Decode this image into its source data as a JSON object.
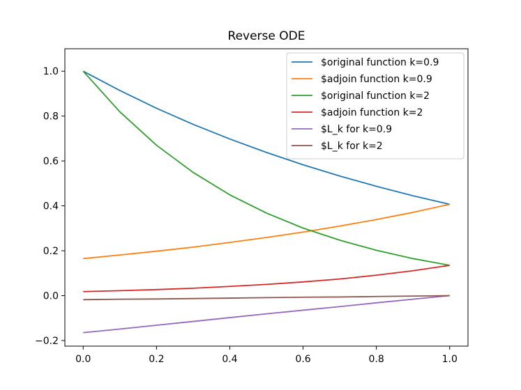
{
  "chart_data": {
    "type": "line",
    "title": "Reverse ODE",
    "xlabel": "",
    "ylabel": "",
    "xlim": [
      -0.05,
      1.05
    ],
    "ylim": [
      -0.225,
      1.1
    ],
    "xticks": [
      0.0,
      0.2,
      0.4,
      0.6,
      0.8,
      1.0
    ],
    "xtick_labels": [
      "0.0",
      "0.2",
      "0.4",
      "0.6",
      "0.8",
      "1.0"
    ],
    "yticks": [
      -0.2,
      0.0,
      0.2,
      0.4,
      0.6,
      0.8,
      1.0
    ],
    "ytick_labels": [
      "−0.2",
      "0.0",
      "0.2",
      "0.4",
      "0.6",
      "0.8",
      "1.0"
    ],
    "grid": false,
    "legend_position": "top-right",
    "x": [
      0.0,
      0.1,
      0.2,
      0.3,
      0.4,
      0.5,
      0.6,
      0.7,
      0.8,
      0.9,
      1.0
    ],
    "series": [
      {
        "name": "$original function k=0.9",
        "color": "#1f77b4",
        "values": [
          1.0,
          0.914,
          0.835,
          0.763,
          0.698,
          0.638,
          0.583,
          0.533,
          0.487,
          0.445,
          0.407
        ]
      },
      {
        "name": "$adjoin function k=0.9",
        "color": "#ff7f0e",
        "values": [
          0.165,
          0.181,
          0.198,
          0.216,
          0.237,
          0.259,
          0.283,
          0.31,
          0.339,
          0.371,
          0.407
        ]
      },
      {
        "name": "$original function k=2",
        "color": "#2ca02c",
        "values": [
          1.0,
          0.819,
          0.67,
          0.549,
          0.449,
          0.368,
          0.301,
          0.247,
          0.202,
          0.165,
          0.135
        ]
      },
      {
        "name": "$adjoin function k=2",
        "color": "#d62728",
        "values": [
          0.018,
          0.022,
          0.027,
          0.033,
          0.041,
          0.05,
          0.061,
          0.074,
          0.091,
          0.111,
          0.135
        ]
      },
      {
        "name": "$L_k for k=0.9",
        "color": "#9467bd",
        "values": [
          -0.165,
          -0.149,
          -0.132,
          -0.115,
          -0.098,
          -0.081,
          -0.065,
          -0.049,
          -0.032,
          -0.016,
          0.0
        ]
      },
      {
        "name": "$L_k for k=2",
        "color": "#8c564b",
        "values": [
          -0.018,
          -0.016,
          -0.015,
          -0.013,
          -0.011,
          -0.009,
          -0.007,
          -0.006,
          -0.004,
          -0.002,
          0.0
        ]
      }
    ]
  }
}
